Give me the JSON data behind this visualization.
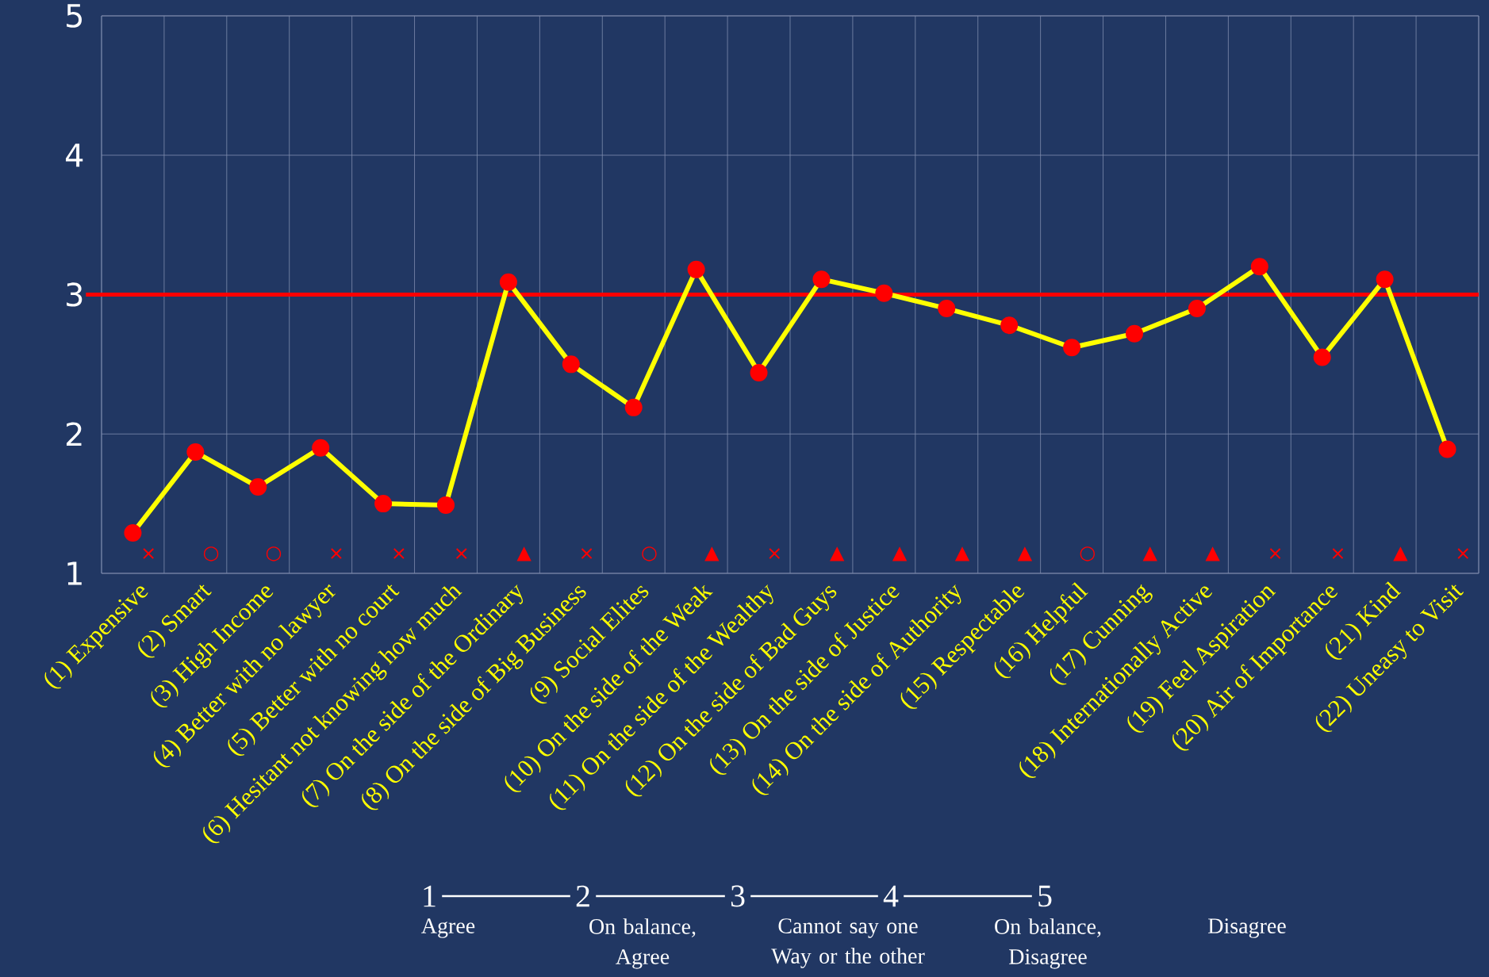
{
  "chart_data": {
    "type": "line",
    "categories": [
      "(1) Expensive",
      "(2) Smart",
      "(3) High Income",
      "(4) Better with no lawyer",
      "(5) Better with no court",
      "(6) Hesitant not knowing how much",
      "(7) On the side of the Ordinary",
      "(8) On the side of Big Business",
      "(9) Social Elites",
      "(10) On the side of the Weak",
      "(11) On the side of the Wealthy",
      "(12) On the side of Bad Guys",
      "(13) On the side of Justice",
      "(14) On the side of Authority",
      "(15) Respectable",
      "(16) Helpful",
      "(17) Cunning",
      "(18) Internationally Active",
      "(19) Feel Aspiration",
      "(20) Air of Importance",
      "(21) Kind",
      "(22) Uneasy to Visit"
    ],
    "series": [
      {
        "color": "#ffff00",
        "values": [
          1.29,
          1.87,
          1.62,
          1.9,
          1.5,
          1.49,
          3.09,
          2.5,
          2.19,
          3.18,
          2.44,
          3.11,
          3.01,
          2.9,
          2.78,
          2.62,
          2.72,
          2.9,
          3.2,
          2.55,
          3.11,
          1.89
        ]
      }
    ],
    "ylim": [
      1,
      5
    ],
    "yticks": [
      1,
      2,
      3,
      4,
      5
    ],
    "grid": true,
    "marker": "circle",
    "line_style": "solid",
    "ref_lines": [
      {
        "axis": "y",
        "value": 3,
        "color": "#ff0000"
      }
    ],
    "annotations": [
      "×",
      "○",
      "○",
      "×",
      "×",
      "×",
      "▲",
      "×",
      "○",
      "▲",
      "×",
      "▲",
      "▲",
      "▲",
      "▲",
      "○",
      "▲",
      "▲",
      "×",
      "×",
      "▲",
      "×",
      "1",
      "2",
      "3",
      "4",
      "5",
      "Agree",
      "On balance, Agree",
      "Cannot say one Way or the other",
      "On balance, Disagree",
      "Disagree"
    ]
  }
}
